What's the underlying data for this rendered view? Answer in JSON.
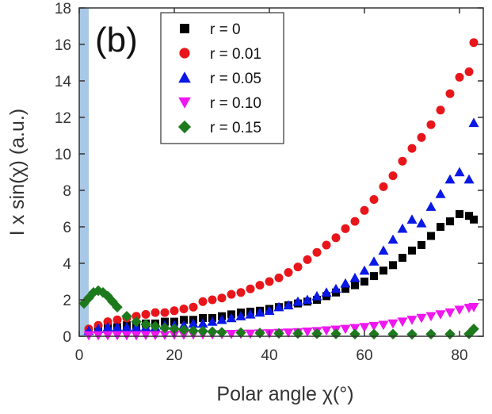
{
  "chart_data": {
    "type": "scatter",
    "panel_label": "(b)",
    "xlabel": "Polar angle χ(°)",
    "ylabel": "I x sin(χ) (a.u.)",
    "xlim": [
      0,
      85
    ],
    "ylim": [
      0,
      18
    ],
    "xticks": [
      0,
      20,
      40,
      60,
      80
    ],
    "yticks": [
      0,
      2,
      4,
      6,
      8,
      10,
      12,
      14,
      16,
      18
    ],
    "grid": false,
    "legend_position": "top-center",
    "highlight_band": {
      "x_start": 0,
      "x_end": 2,
      "color": "#a9c8e6"
    },
    "series": [
      {
        "name": "r = 0",
        "marker": "square",
        "color": "#000000",
        "x": [
          2,
          4,
          6,
          8,
          10,
          12,
          14,
          16,
          18,
          20,
          22,
          24,
          26,
          28,
          30,
          32,
          34,
          36,
          38,
          40,
          42,
          44,
          46,
          48,
          50,
          52,
          54,
          56,
          58,
          60,
          62,
          64,
          66,
          68,
          70,
          72,
          74,
          76,
          78,
          80,
          82,
          83
        ],
        "y": [
          0.3,
          0.4,
          0.5,
          0.5,
          0.6,
          0.6,
          0.7,
          0.7,
          0.8,
          0.8,
          0.9,
          0.9,
          1.0,
          1.0,
          1.1,
          1.2,
          1.3,
          1.35,
          1.4,
          1.5,
          1.6,
          1.7,
          1.8,
          1.9,
          2.0,
          2.2,
          2.4,
          2.6,
          2.8,
          3.0,
          3.3,
          3.6,
          3.9,
          4.3,
          4.7,
          5.0,
          5.5,
          6.0,
          6.3,
          6.7,
          6.6,
          6.4
        ]
      },
      {
        "name": "r = 0.01",
        "marker": "circle",
        "color": "#e8161b",
        "x": [
          2,
          4,
          6,
          8,
          10,
          12,
          14,
          16,
          18,
          20,
          22,
          24,
          26,
          28,
          30,
          32,
          34,
          36,
          38,
          40,
          42,
          44,
          46,
          48,
          50,
          52,
          54,
          56,
          58,
          60,
          62,
          64,
          66,
          68,
          70,
          72,
          74,
          76,
          78,
          80,
          82,
          83
        ],
        "y": [
          0.4,
          0.6,
          0.8,
          0.9,
          1.0,
          1.1,
          1.2,
          1.3,
          1.3,
          1.4,
          1.5,
          1.6,
          1.9,
          2.0,
          2.1,
          2.3,
          2.4,
          2.6,
          2.8,
          3.0,
          3.2,
          3.5,
          3.8,
          4.2,
          4.6,
          5.0,
          5.4,
          5.9,
          6.3,
          6.9,
          7.5,
          8.2,
          8.8,
          9.6,
          10.3,
          10.9,
          11.6,
          12.4,
          13.3,
          14.2,
          14.5,
          16.1
        ]
      },
      {
        "name": "r = 0.05",
        "marker": "triangle-up",
        "color": "#0a18e6",
        "x": [
          2,
          4,
          6,
          8,
          10,
          12,
          14,
          16,
          18,
          20,
          22,
          24,
          26,
          28,
          30,
          32,
          34,
          36,
          38,
          40,
          42,
          44,
          46,
          48,
          50,
          52,
          54,
          56,
          58,
          60,
          62,
          64,
          66,
          68,
          70,
          72,
          74,
          76,
          78,
          80,
          82,
          83
        ],
        "y": [
          0.3,
          0.4,
          0.5,
          0.5,
          0.5,
          0.5,
          0.5,
          0.5,
          0.6,
          0.6,
          0.6,
          0.7,
          0.7,
          0.8,
          0.9,
          1.0,
          1.1,
          1.2,
          1.3,
          1.4,
          1.6,
          1.7,
          1.9,
          2.0,
          2.2,
          2.4,
          2.6,
          2.9,
          3.2,
          3.6,
          4.1,
          4.7,
          5.3,
          5.9,
          6.4,
          6.2,
          7.1,
          7.8,
          8.6,
          9.0,
          8.6,
          11.7
        ]
      },
      {
        "name": "r = 0.10",
        "marker": "triangle-down",
        "color": "#f016f0",
        "x": [
          2,
          4,
          6,
          8,
          10,
          12,
          14,
          16,
          18,
          20,
          22,
          24,
          26,
          28,
          30,
          32,
          34,
          36,
          38,
          40,
          42,
          44,
          46,
          48,
          50,
          52,
          54,
          56,
          58,
          60,
          62,
          64,
          66,
          68,
          70,
          72,
          74,
          76,
          78,
          80,
          82,
          83
        ],
        "y": [
          0.05,
          0.05,
          0.05,
          0.05,
          0.05,
          0.05,
          0.06,
          0.06,
          0.07,
          0.08,
          0.08,
          0.09,
          0.1,
          0.1,
          0.11,
          0.12,
          0.13,
          0.14,
          0.15,
          0.16,
          0.18,
          0.2,
          0.22,
          0.25,
          0.28,
          0.32,
          0.36,
          0.4,
          0.45,
          0.5,
          0.56,
          0.62,
          0.7,
          0.8,
          0.9,
          1.0,
          1.1,
          1.2,
          1.3,
          1.45,
          1.55,
          1.6
        ]
      },
      {
        "name": "r = 0.15",
        "marker": "diamond",
        "color": "#1c7a1c",
        "x": [
          1,
          2,
          3,
          4,
          5,
          6,
          7,
          8,
          10,
          12,
          14,
          16,
          18,
          20,
          22,
          24,
          26,
          28,
          30,
          34,
          38,
          42,
          46,
          50,
          54,
          58,
          62,
          66,
          70,
          74,
          78,
          82,
          83
        ],
        "y": [
          1.8,
          2.1,
          2.4,
          2.5,
          2.4,
          2.2,
          1.9,
          1.6,
          1.1,
          0.8,
          0.65,
          0.55,
          0.45,
          0.4,
          0.35,
          0.3,
          0.28,
          0.25,
          0.22,
          0.2,
          0.18,
          0.16,
          0.15,
          0.14,
          0.13,
          0.12,
          0.12,
          0.12,
          0.11,
          0.12,
          0.12,
          0.13,
          0.4
        ]
      }
    ]
  }
}
